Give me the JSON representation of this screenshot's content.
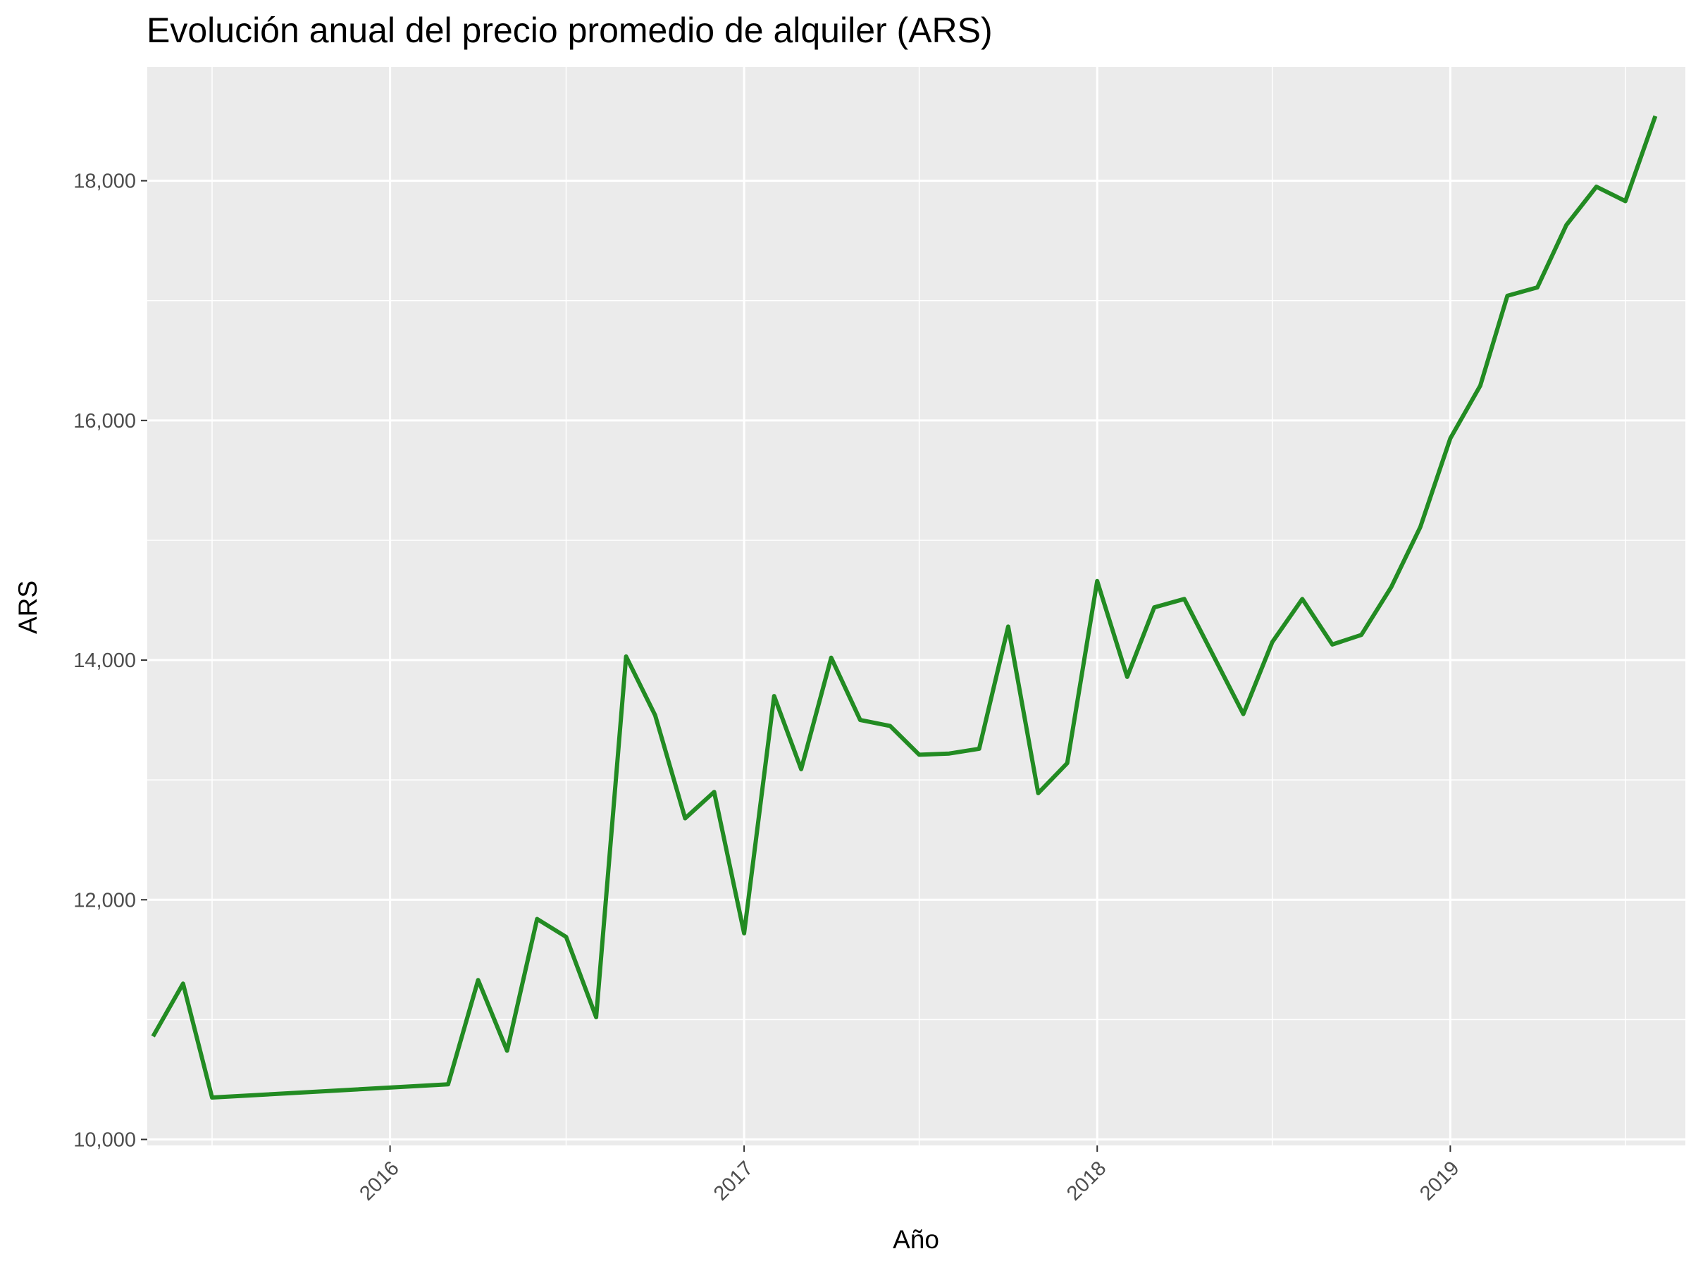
{
  "chart_data": {
    "type": "line",
    "title": "Evolución anual del precio promedio de alquiler (ARS)",
    "xlabel": "Año",
    "ylabel": "ARS",
    "x_tick_labels": [
      "2016",
      "2017",
      "2018",
      "2019"
    ],
    "y_tick_labels": [
      "10,000",
      "12,000",
      "14,000",
      "16,000",
      "18,000"
    ],
    "xlim": [
      "2015-04-25",
      "2019-09-01"
    ],
    "ylim": [
      9950,
      18950
    ],
    "grid": true,
    "line_color": "#228B22",
    "panel_background": "#EBEBEB",
    "series": [
      {
        "x": [
          "2015-05-01",
          "2015-06-01",
          "2015-07-01",
          "2016-03-01",
          "2016-04-01",
          "2016-05-01",
          "2016-06-01",
          "2016-07-01",
          "2016-08-01",
          "2016-09-01",
          "2016-10-01",
          "2016-11-01",
          "2016-12-01",
          "2017-01-01",
          "2017-02-01",
          "2017-03-01",
          "2017-04-01",
          "2017-05-01",
          "2017-06-01",
          "2017-07-01",
          "2017-08-01",
          "2017-09-01",
          "2017-10-01",
          "2017-11-01",
          "2017-12-01",
          "2018-01-01",
          "2018-02-01",
          "2018-03-01",
          "2018-04-01",
          "2018-06-01",
          "2018-07-01",
          "2018-08-01",
          "2018-09-01",
          "2018-10-01",
          "2018-11-01",
          "2018-12-01",
          "2019-01-01",
          "2019-02-01",
          "2019-03-01",
          "2019-04-01",
          "2019-05-01",
          "2019-06-01",
          "2019-07-01",
          "2019-08-01"
        ],
        "y": [
          10860,
          11300,
          10350,
          10460,
          11330,
          10740,
          11840,
          11690,
          11020,
          14030,
          13540,
          12680,
          12900,
          11720,
          13700,
          13090,
          14020,
          13500,
          13450,
          13210,
          13220,
          13260,
          14280,
          12890,
          13140,
          14660,
          13860,
          14440,
          14510,
          13550,
          14150,
          14510,
          14130,
          14210,
          14610,
          15110,
          15850,
          16290,
          17040,
          17110,
          17630,
          17950,
          17830,
          18540
        ]
      }
    ]
  }
}
